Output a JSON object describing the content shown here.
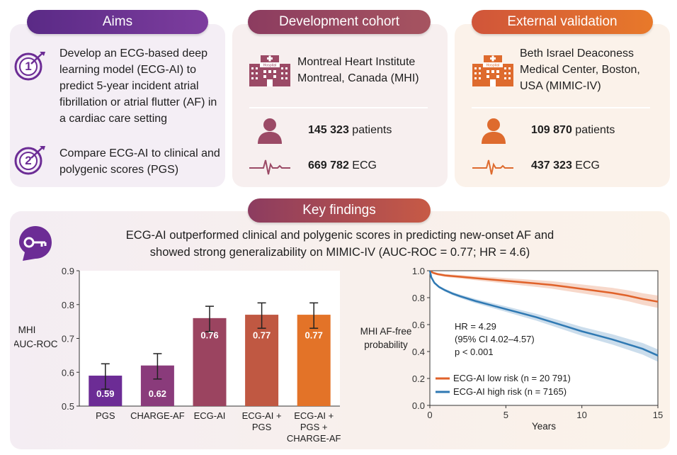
{
  "aims": {
    "title": "Aims",
    "items": [
      {
        "number": "1",
        "text": "Develop an ECG-based deep learning model (ECG-AI) to predict 5-year incident atrial fibrillation or atrial flutter (AF) in a cardiac care setting"
      },
      {
        "number": "2",
        "text": "Compare ECG-AI to clinical and polygenic scores (PGS)"
      }
    ]
  },
  "development": {
    "title": "Development cohort",
    "site": "Montreal Heart Institute Montreal, Canada (MHI)",
    "hospital_sign": "Hospital",
    "patients_value": "145 323",
    "patients_unit": "patients",
    "ecg_value": "669 782",
    "ecg_unit": "ECG",
    "color": "#9b4a66"
  },
  "validation": {
    "title": "External validation",
    "site": "Beth Israel Deaconess Medical Center, Boston, USA (MIMIC-IV)",
    "hospital_sign": "Hospital",
    "patients_value": "109 870",
    "patients_unit": "patients",
    "ecg_value": "437 323",
    "ecg_unit": "ECG",
    "color": "#de6b2e"
  },
  "findings": {
    "title": "Key findings",
    "summary": "ECG-AI outperformed clinical and polygenic scores in predicting new-onset AF and showed strong generalizability on MIMIC-IV (AUC-ROC = 0.77; HR = 4.6)"
  },
  "icons": {
    "aim": "target-icon",
    "hospital": "hospital-icon",
    "patients": "person-icon",
    "ecg": "ecg-waveform-icon",
    "key": "key-icon"
  },
  "chart_data": [
    {
      "type": "bar",
      "ylabel": "MHI AUC-ROC",
      "ylim": [
        0.5,
        0.9
      ],
      "yticks": [
        "0.5",
        "0.6",
        "0.7",
        "0.8",
        "0.9"
      ],
      "categories": [
        "PGS",
        "CHARGE-AF",
        "ECG-AI",
        "ECG-AI + PGS",
        "ECG-AI + PGS + CHARGE-AF"
      ],
      "category_lines": [
        [
          "PGS"
        ],
        [
          "CHARGE-AF"
        ],
        [
          "ECG-AI"
        ],
        [
          "ECG-AI +",
          "PGS"
        ],
        [
          "ECG-AI +",
          "PGS +",
          "CHARGE-AF"
        ]
      ],
      "values": [
        0.59,
        0.62,
        0.76,
        0.77,
        0.77
      ],
      "labels": [
        "0.59",
        "0.62",
        "0.76",
        "0.77",
        "0.77"
      ],
      "ci_low": [
        0.55,
        0.58,
        0.72,
        0.73,
        0.73
      ],
      "ci_high": [
        0.625,
        0.655,
        0.795,
        0.805,
        0.805
      ],
      "colors": [
        "#6c2c95",
        "#8a3b7b",
        "#9b4460",
        "#c05842",
        "#e37328"
      ]
    },
    {
      "type": "line",
      "xlabel": "Years",
      "ylabel": "MHI AF-free probability",
      "xlim": [
        0,
        15
      ],
      "ylim": [
        0,
        1
      ],
      "xticks": [
        "0",
        "5",
        "10",
        "15"
      ],
      "yticks": [
        "0.0",
        "0.2",
        "0.4",
        "0.6",
        "0.8",
        "1.0"
      ],
      "annotation": [
        "HR = 4.29",
        "(95% CI 4.02–4.57)",
        "p < 0.001"
      ],
      "series": [
        {
          "name": "ECG-AI low risk (n = 20 791)",
          "color": "#e0622a",
          "x": [
            0,
            0.2,
            0.5,
            1,
            2,
            3,
            4,
            5,
            6,
            7,
            8,
            9,
            10,
            11,
            12,
            13,
            14,
            15
          ],
          "y": [
            1.0,
            0.985,
            0.975,
            0.965,
            0.955,
            0.945,
            0.935,
            0.925,
            0.915,
            0.905,
            0.895,
            0.88,
            0.865,
            0.85,
            0.835,
            0.815,
            0.79,
            0.77
          ]
        },
        {
          "name": "ECG-AI high risk (n = 7165)",
          "color": "#2f79b3",
          "x": [
            0,
            0.1,
            0.3,
            0.6,
            1,
            1.5,
            2,
            3,
            4,
            5,
            6,
            7,
            8,
            9,
            10,
            11,
            12,
            13,
            14,
            15
          ],
          "y": [
            1.0,
            0.95,
            0.91,
            0.88,
            0.855,
            0.83,
            0.81,
            0.775,
            0.745,
            0.715,
            0.685,
            0.655,
            0.62,
            0.585,
            0.55,
            0.52,
            0.49,
            0.455,
            0.42,
            0.37
          ]
        }
      ]
    }
  ]
}
